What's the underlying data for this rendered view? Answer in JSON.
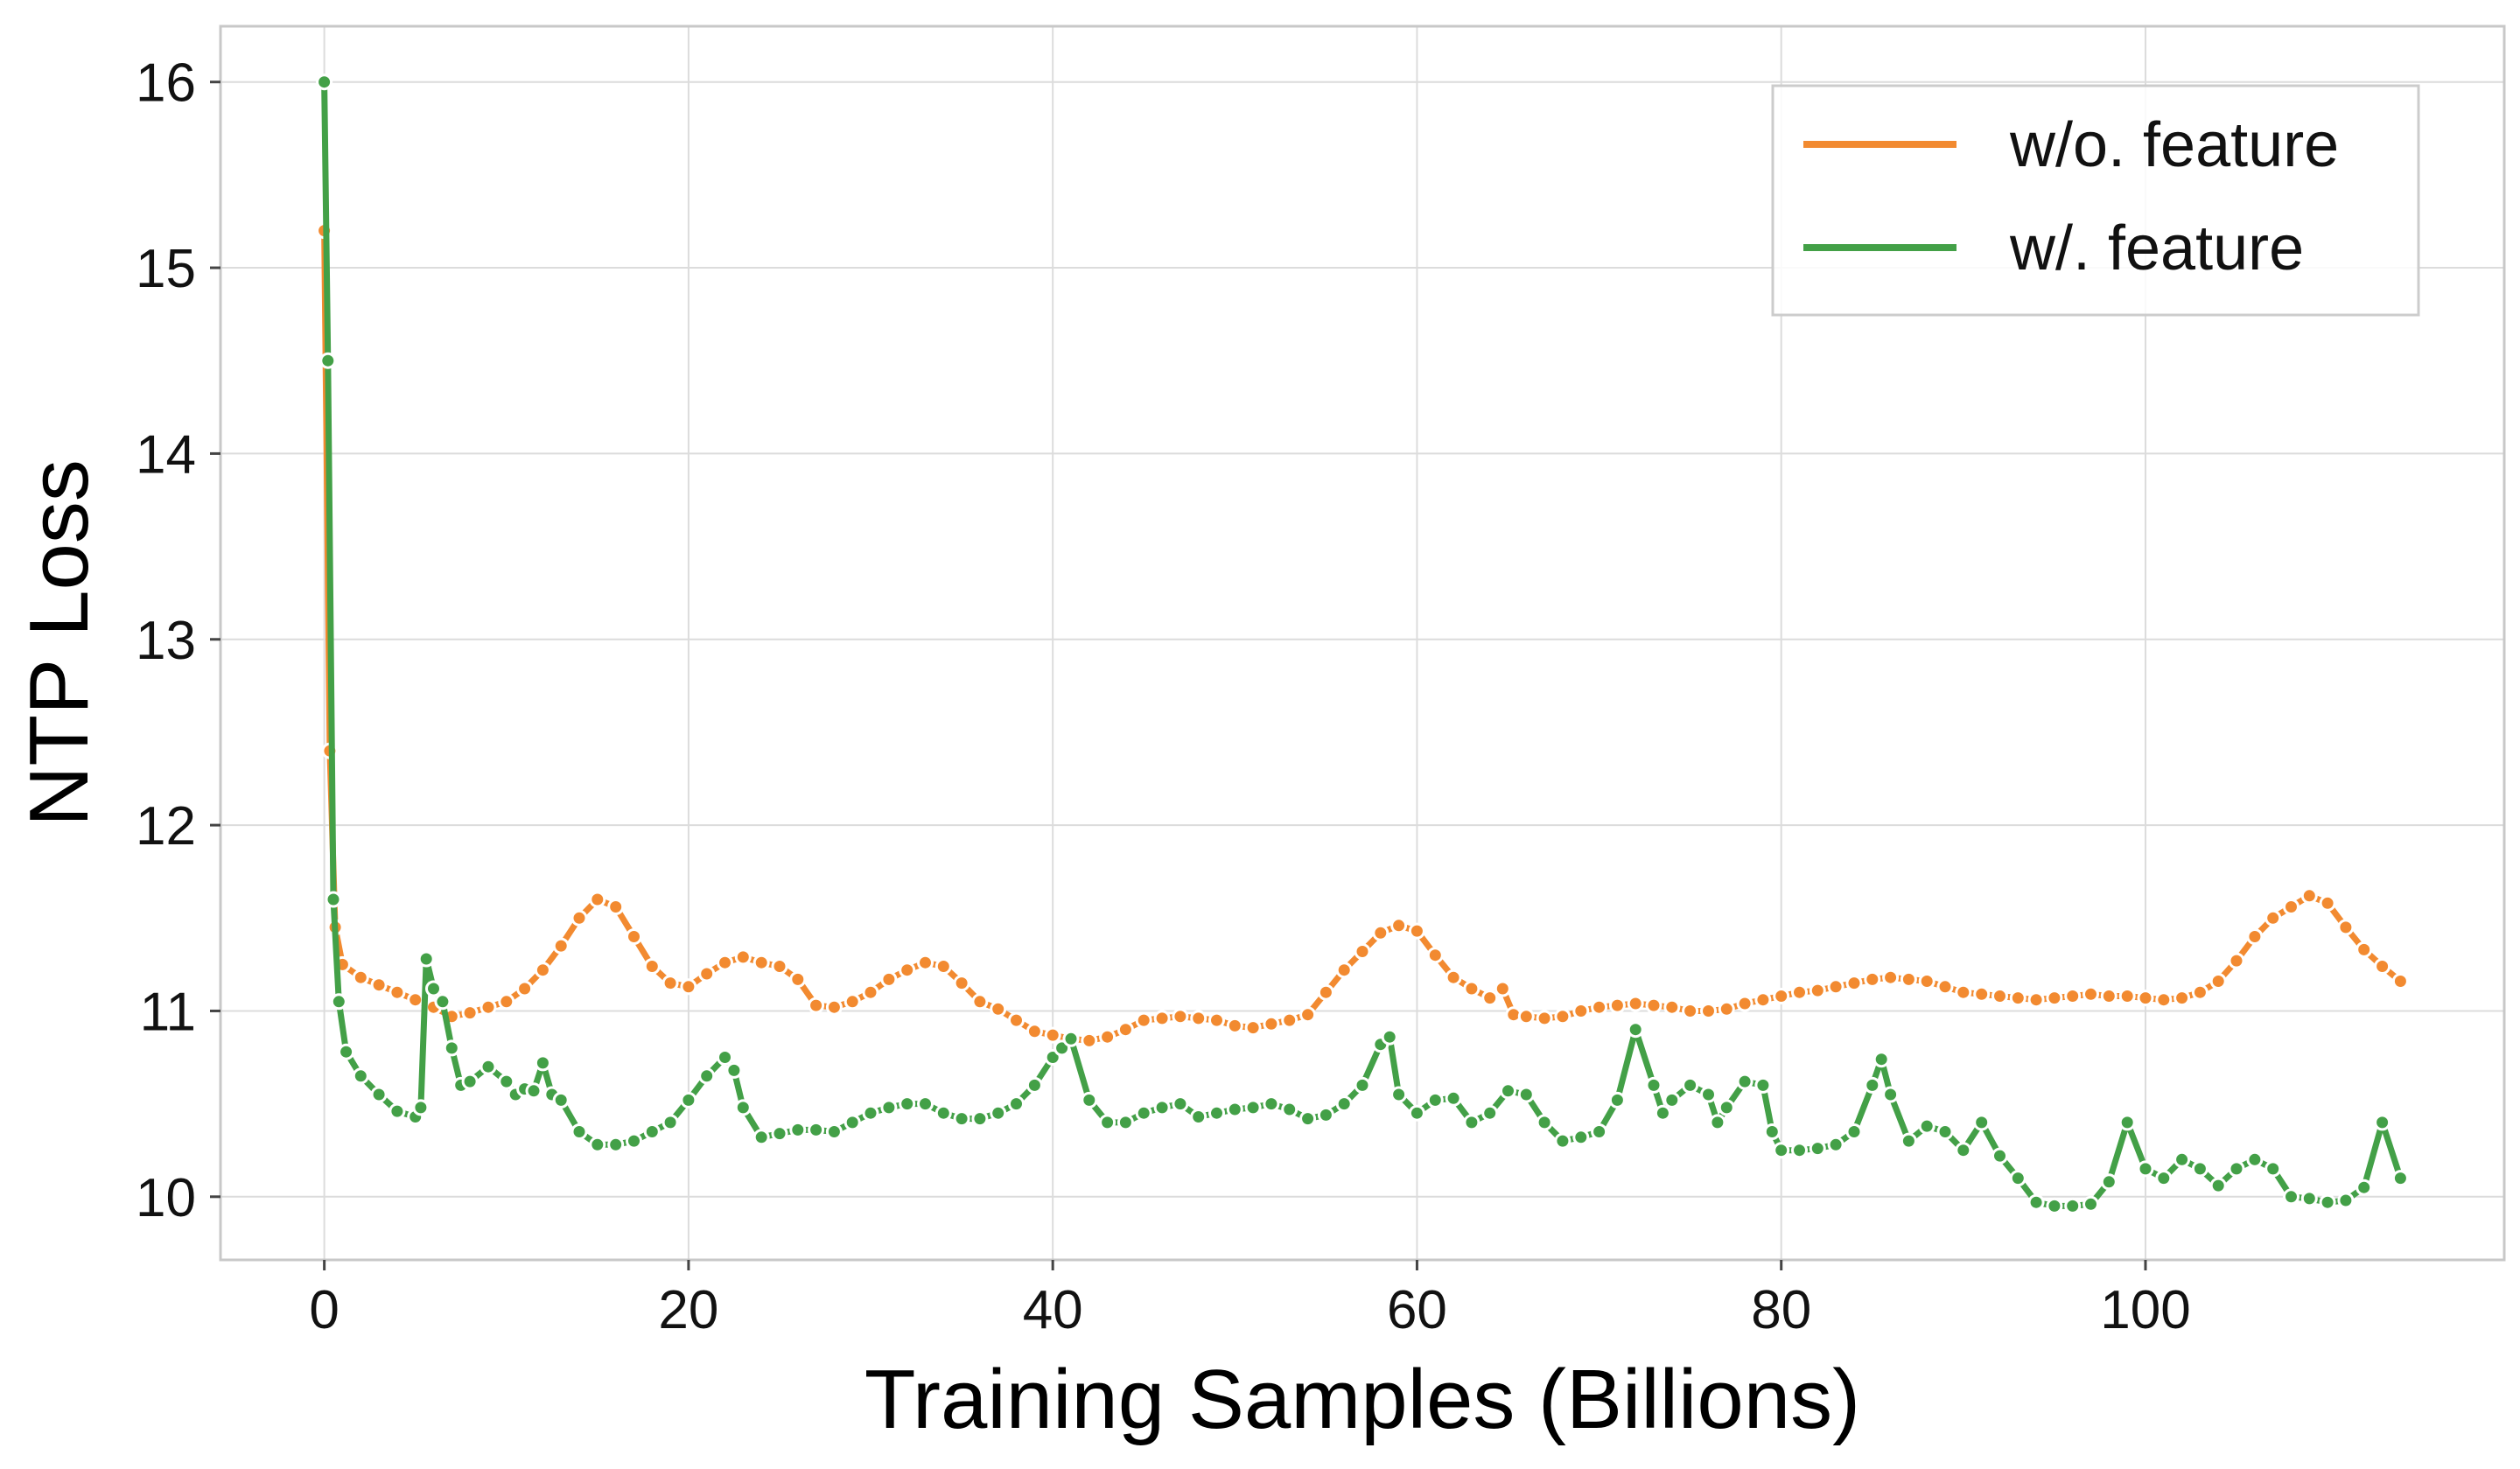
{
  "chart_data": {
    "type": "line",
    "xlabel": "Training Samples (Billions)",
    "ylabel": "NTP Loss",
    "xlim": [
      -5.7,
      119.7
    ],
    "ylim": [
      9.66,
      16.3
    ],
    "xticks": [
      0,
      20,
      40,
      60,
      80,
      100
    ],
    "yticks": [
      10,
      11,
      12,
      13,
      14,
      15,
      16
    ],
    "grid": true,
    "legend_position": "top-right",
    "series": [
      {
        "name": "w/o. feature",
        "color": "#f28a30",
        "points": [
          [
            0,
            15.2
          ],
          [
            0.3,
            12.4
          ],
          [
            0.6,
            11.45
          ],
          [
            1,
            11.25
          ],
          [
            2,
            11.18
          ],
          [
            3,
            11.14
          ],
          [
            4,
            11.1
          ],
          [
            5,
            11.06
          ],
          [
            6,
            11.02
          ],
          [
            7,
            10.97
          ],
          [
            8,
            10.99
          ],
          [
            9,
            11.02
          ],
          [
            10,
            11.05
          ],
          [
            11,
            11.12
          ],
          [
            12,
            11.22
          ],
          [
            13,
            11.35
          ],
          [
            14,
            11.5
          ],
          [
            15,
            11.6
          ],
          [
            16,
            11.56
          ],
          [
            17,
            11.4
          ],
          [
            18,
            11.24
          ],
          [
            19,
            11.15
          ],
          [
            20,
            11.13
          ],
          [
            21,
            11.2
          ],
          [
            22,
            11.26
          ],
          [
            23,
            11.29
          ],
          [
            24,
            11.26
          ],
          [
            25,
            11.24
          ],
          [
            26,
            11.17
          ],
          [
            27,
            11.03
          ],
          [
            28,
            11.02
          ],
          [
            29,
            11.05
          ],
          [
            30,
            11.1
          ],
          [
            31,
            11.17
          ],
          [
            32,
            11.22
          ],
          [
            33,
            11.26
          ],
          [
            34,
            11.24
          ],
          [
            35,
            11.15
          ],
          [
            36,
            11.05
          ],
          [
            37,
            11.01
          ],
          [
            38,
            10.95
          ],
          [
            39,
            10.89
          ],
          [
            40,
            10.87
          ],
          [
            41,
            10.85
          ],
          [
            42,
            10.84
          ],
          [
            43,
            10.86
          ],
          [
            44,
            10.9
          ],
          [
            45,
            10.95
          ],
          [
            46,
            10.96
          ],
          [
            47,
            10.97
          ],
          [
            48,
            10.96
          ],
          [
            49,
            10.95
          ],
          [
            50,
            10.92
          ],
          [
            51,
            10.91
          ],
          [
            52,
            10.93
          ],
          [
            53,
            10.95
          ],
          [
            54,
            10.98
          ],
          [
            55,
            11.1
          ],
          [
            56,
            11.22
          ],
          [
            57,
            11.32
          ],
          [
            58,
            11.42
          ],
          [
            59,
            11.46
          ],
          [
            60,
            11.43
          ],
          [
            61,
            11.3
          ],
          [
            62,
            11.18
          ],
          [
            63,
            11.12
          ],
          [
            64,
            11.07
          ],
          [
            64.7,
            11.12
          ],
          [
            65.3,
            10.98
          ],
          [
            66,
            10.97
          ],
          [
            67,
            10.96
          ],
          [
            68,
            10.97
          ],
          [
            69,
            11.0
          ],
          [
            70,
            11.02
          ],
          [
            71,
            11.03
          ],
          [
            72,
            11.04
          ],
          [
            73,
            11.03
          ],
          [
            74,
            11.02
          ],
          [
            75,
            11.0
          ],
          [
            76,
            11.0
          ],
          [
            77,
            11.01
          ],
          [
            78,
            11.04
          ],
          [
            79,
            11.06
          ],
          [
            80,
            11.08
          ],
          [
            81,
            11.1
          ],
          [
            82,
            11.11
          ],
          [
            83,
            11.13
          ],
          [
            84,
            11.15
          ],
          [
            85,
            11.17
          ],
          [
            86,
            11.18
          ],
          [
            87,
            11.17
          ],
          [
            88,
            11.16
          ],
          [
            89,
            11.13
          ],
          [
            90,
            11.1
          ],
          [
            91,
            11.09
          ],
          [
            92,
            11.08
          ],
          [
            93,
            11.07
          ],
          [
            94,
            11.06
          ],
          [
            95,
            11.07
          ],
          [
            96,
            11.08
          ],
          [
            97,
            11.09
          ],
          [
            98,
            11.08
          ],
          [
            99,
            11.08
          ],
          [
            100,
            11.07
          ],
          [
            101,
            11.06
          ],
          [
            102,
            11.07
          ],
          [
            103,
            11.1
          ],
          [
            104,
            11.16
          ],
          [
            105,
            11.27
          ],
          [
            106,
            11.4
          ],
          [
            107,
            11.5
          ],
          [
            108,
            11.56
          ],
          [
            109,
            11.62
          ],
          [
            110,
            11.58
          ],
          [
            111,
            11.45
          ],
          [
            112,
            11.33
          ],
          [
            113,
            11.24
          ],
          [
            114,
            11.16
          ]
        ]
      },
      {
        "name": "w/. feature",
        "color": "#43a047",
        "points": [
          [
            0,
            16.0
          ],
          [
            0.2,
            14.5
          ],
          [
            0.5,
            11.6
          ],
          [
            0.8,
            11.05
          ],
          [
            1.2,
            10.78
          ],
          [
            2,
            10.65
          ],
          [
            3,
            10.55
          ],
          [
            4,
            10.46
          ],
          [
            5,
            10.43
          ],
          [
            5.3,
            10.48
          ],
          [
            5.6,
            11.28
          ],
          [
            6,
            11.12
          ],
          [
            6.5,
            11.05
          ],
          [
            7,
            10.8
          ],
          [
            7.5,
            10.6
          ],
          [
            8,
            10.62
          ],
          [
            9,
            10.7
          ],
          [
            10,
            10.62
          ],
          [
            10.5,
            10.55
          ],
          [
            11,
            10.58
          ],
          [
            11.5,
            10.57
          ],
          [
            12,
            10.72
          ],
          [
            12.5,
            10.55
          ],
          [
            13,
            10.52
          ],
          [
            14,
            10.35
          ],
          [
            15,
            10.28
          ],
          [
            16,
            10.28
          ],
          [
            17,
            10.3
          ],
          [
            18,
            10.35
          ],
          [
            19,
            10.4
          ],
          [
            20,
            10.52
          ],
          [
            21,
            10.65
          ],
          [
            22,
            10.75
          ],
          [
            22.5,
            10.68
          ],
          [
            23,
            10.48
          ],
          [
            24,
            10.32
          ],
          [
            25,
            10.34
          ],
          [
            26,
            10.36
          ],
          [
            27,
            10.36
          ],
          [
            28,
            10.35
          ],
          [
            29,
            10.4
          ],
          [
            30,
            10.45
          ],
          [
            31,
            10.48
          ],
          [
            32,
            10.5
          ],
          [
            33,
            10.5
          ],
          [
            34,
            10.45
          ],
          [
            35,
            10.42
          ],
          [
            36,
            10.42
          ],
          [
            37,
            10.45
          ],
          [
            38,
            10.5
          ],
          [
            39,
            10.6
          ],
          [
            40,
            10.75
          ],
          [
            40.5,
            10.8
          ],
          [
            41,
            10.85
          ],
          [
            42,
            10.52
          ],
          [
            43,
            10.4
          ],
          [
            44,
            10.4
          ],
          [
            45,
            10.45
          ],
          [
            46,
            10.48
          ],
          [
            47,
            10.5
          ],
          [
            48,
            10.43
          ],
          [
            49,
            10.45
          ],
          [
            50,
            10.47
          ],
          [
            51,
            10.48
          ],
          [
            52,
            10.5
          ],
          [
            53,
            10.47
          ],
          [
            54,
            10.42
          ],
          [
            55,
            10.44
          ],
          [
            56,
            10.5
          ],
          [
            57,
            10.6
          ],
          [
            58,
            10.82
          ],
          [
            58.5,
            10.86
          ],
          [
            59,
            10.55
          ],
          [
            60,
            10.45
          ],
          [
            61,
            10.52
          ],
          [
            62,
            10.53
          ],
          [
            63,
            10.4
          ],
          [
            64,
            10.45
          ],
          [
            65,
            10.57
          ],
          [
            66,
            10.55
          ],
          [
            67,
            10.4
          ],
          [
            68,
            10.3
          ],
          [
            69,
            10.32
          ],
          [
            70,
            10.35
          ],
          [
            71,
            10.52
          ],
          [
            72,
            10.9
          ],
          [
            73,
            10.6
          ],
          [
            73.5,
            10.45
          ],
          [
            74,
            10.52
          ],
          [
            75,
            10.6
          ],
          [
            76,
            10.55
          ],
          [
            76.5,
            10.4
          ],
          [
            77,
            10.48
          ],
          [
            78,
            10.62
          ],
          [
            79,
            10.6
          ],
          [
            79.5,
            10.35
          ],
          [
            80,
            10.25
          ],
          [
            81,
            10.25
          ],
          [
            82,
            10.26
          ],
          [
            83,
            10.28
          ],
          [
            84,
            10.35
          ],
          [
            85,
            10.6
          ],
          [
            85.5,
            10.74
          ],
          [
            86,
            10.55
          ],
          [
            87,
            10.3
          ],
          [
            88,
            10.38
          ],
          [
            89,
            10.35
          ],
          [
            90,
            10.25
          ],
          [
            91,
            10.4
          ],
          [
            92,
            10.22
          ],
          [
            93,
            10.1
          ],
          [
            94,
            9.97
          ],
          [
            95,
            9.95
          ],
          [
            96,
            9.95
          ],
          [
            97,
            9.96
          ],
          [
            98,
            10.08
          ],
          [
            99,
            10.4
          ],
          [
            100,
            10.15
          ],
          [
            101,
            10.1
          ],
          [
            102,
            10.2
          ],
          [
            103,
            10.15
          ],
          [
            104,
            10.06
          ],
          [
            105,
            10.15
          ],
          [
            106,
            10.2
          ],
          [
            107,
            10.15
          ],
          [
            108,
            10.0
          ],
          [
            109,
            9.99
          ],
          [
            110,
            9.97
          ],
          [
            111,
            9.98
          ],
          [
            112,
            10.05
          ],
          [
            113,
            10.4
          ],
          [
            114,
            10.1
          ]
        ]
      }
    ]
  }
}
